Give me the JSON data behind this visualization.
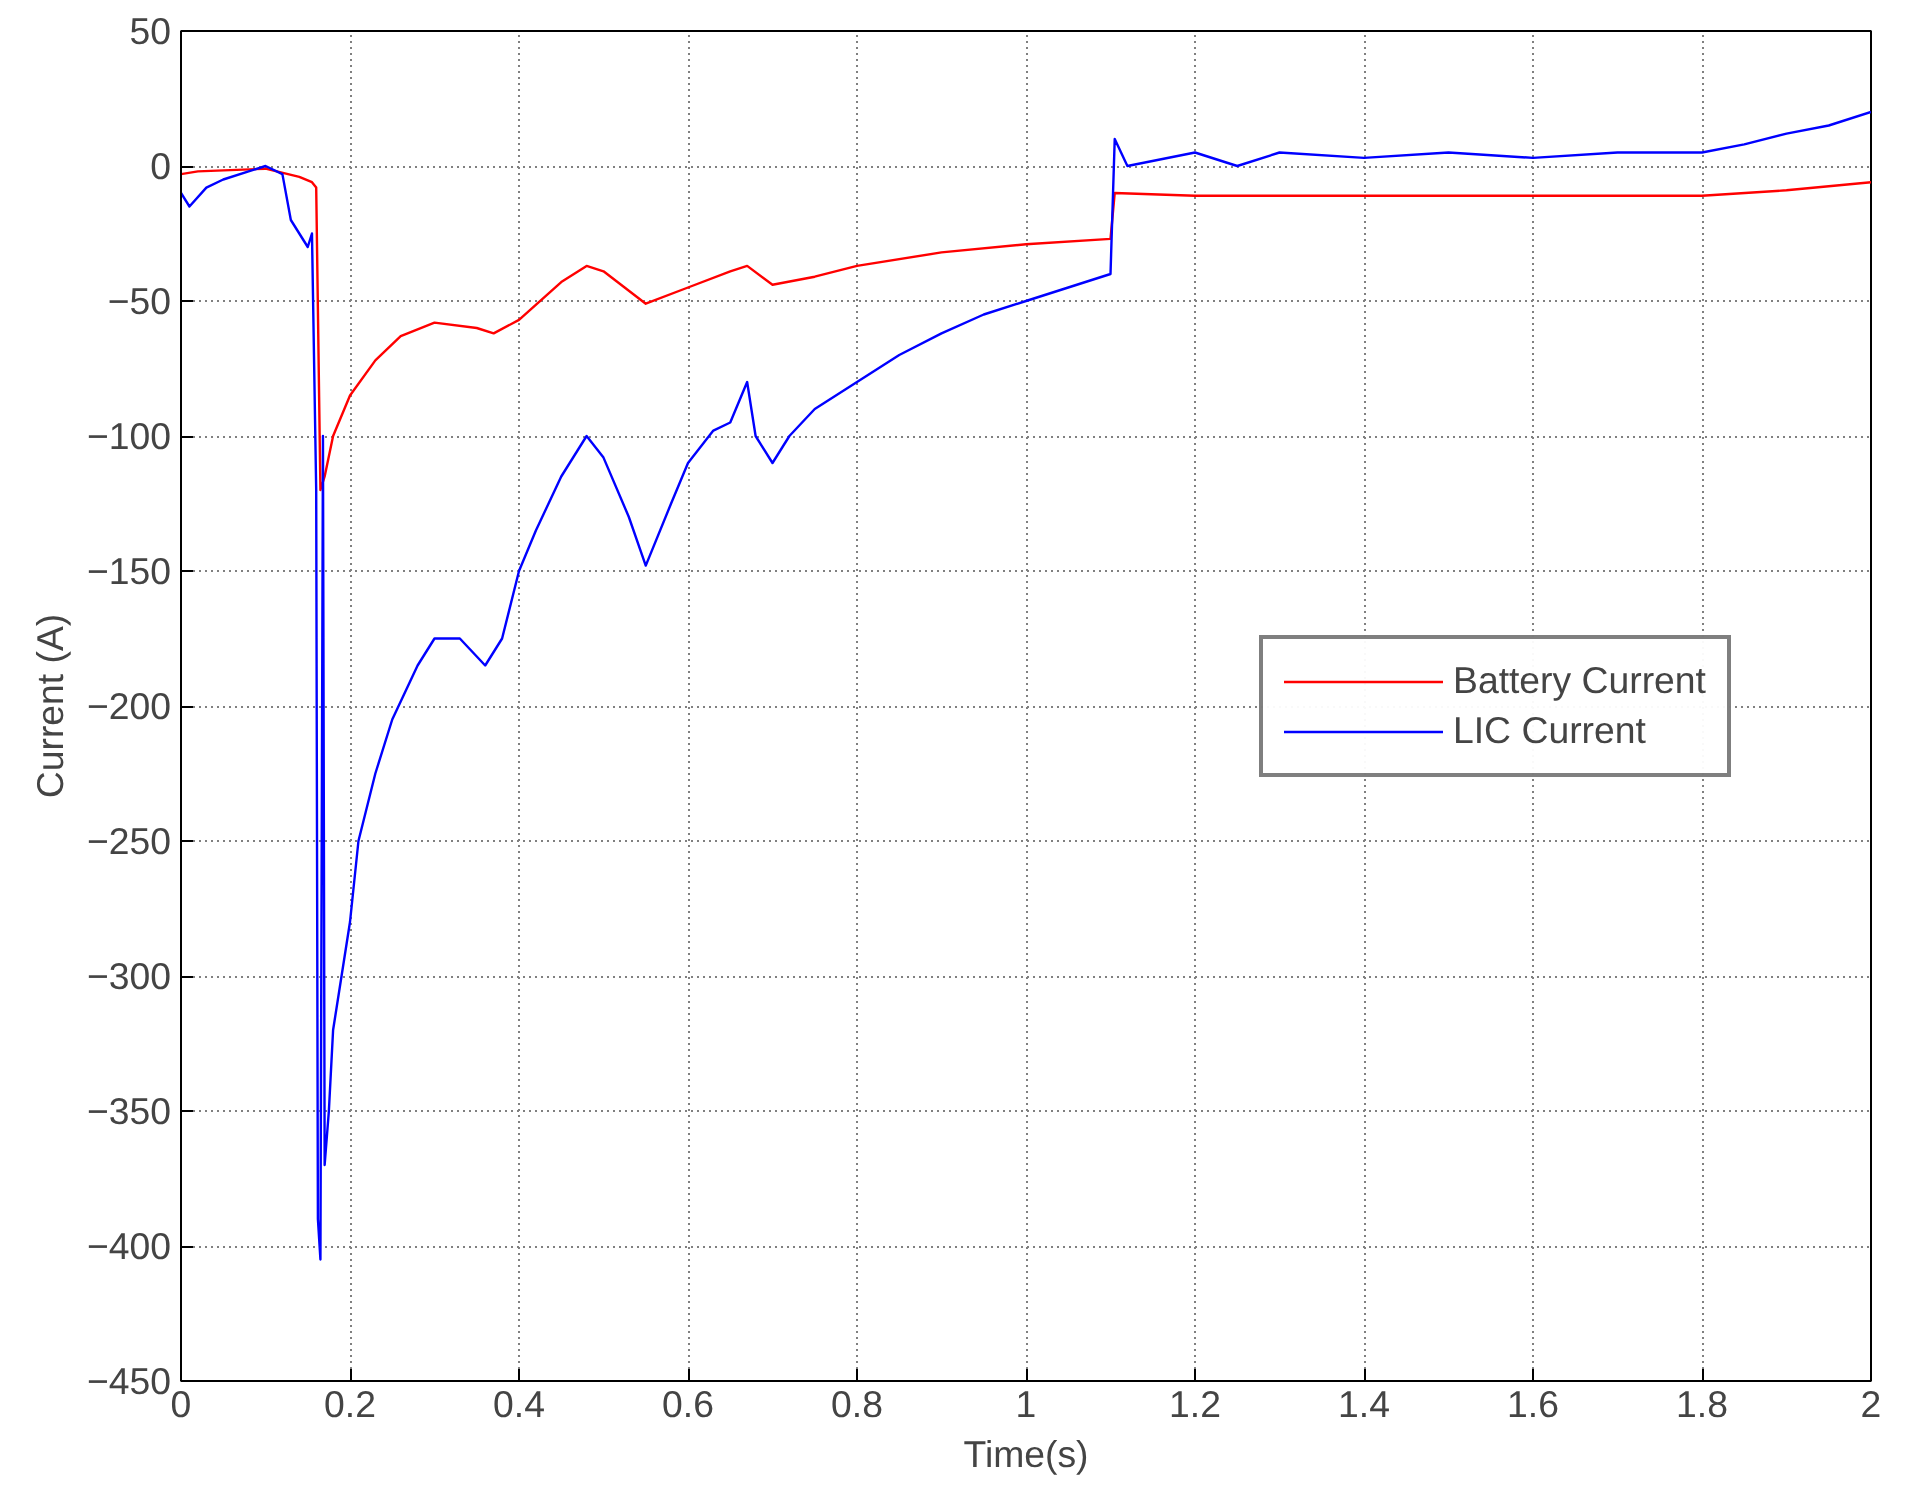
{
  "chart_data": {
    "type": "line",
    "xlabel": "Time(s)",
    "ylabel": "Current (A)",
    "xlim": [
      0,
      2
    ],
    "ylim": [
      -450,
      50
    ],
    "xticks": [
      0,
      0.2,
      0.4,
      0.6,
      0.8,
      1,
      1.2,
      1.4,
      1.6,
      1.8,
      2
    ],
    "yticks": [
      -450,
      -400,
      -350,
      -300,
      -250,
      -200,
      -150,
      -100,
      -50,
      0,
      50
    ],
    "grid": true,
    "legend": "right",
    "series": [
      {
        "name": "Battery Current",
        "color": "#ff0000",
        "x": [
          0,
          0.02,
          0.1,
          0.14,
          0.155,
          0.16,
          0.165,
          0.17,
          0.18,
          0.2,
          0.23,
          0.26,
          0.3,
          0.35,
          0.37,
          0.4,
          0.45,
          0.48,
          0.5,
          0.55,
          0.6,
          0.65,
          0.67,
          0.7,
          0.75,
          0.8,
          0.9,
          1.0,
          1.1,
          1.105,
          1.2,
          1.5,
          1.8,
          1.9,
          2.0
        ],
        "values": [
          -3,
          -2,
          -1,
          -4,
          -6,
          -8,
          -120,
          -115,
          -100,
          -85,
          -72,
          -63,
          -58,
          -60,
          -62,
          -57,
          -43,
          -37,
          -39,
          -51,
          -45,
          -39,
          -37,
          -44,
          -41,
          -37,
          -32,
          -29,
          -27,
          -10,
          -11,
          -11,
          -11,
          -9,
          -6
        ]
      },
      {
        "name": "LIC Current",
        "color": "#0000ff",
        "x": [
          0,
          0.01,
          0.03,
          0.05,
          0.08,
          0.1,
          0.12,
          0.13,
          0.15,
          0.155,
          0.16,
          0.162,
          0.165,
          0.168,
          0.17,
          0.175,
          0.18,
          0.19,
          0.2,
          0.21,
          0.23,
          0.25,
          0.28,
          0.3,
          0.33,
          0.36,
          0.38,
          0.4,
          0.42,
          0.45,
          0.48,
          0.5,
          0.53,
          0.55,
          0.58,
          0.6,
          0.63,
          0.65,
          0.67,
          0.68,
          0.7,
          0.72,
          0.75,
          0.8,
          0.85,
          0.9,
          0.95,
          1.0,
          1.05,
          1.1,
          1.105,
          1.12,
          1.2,
          1.25,
          1.3,
          1.4,
          1.5,
          1.6,
          1.7,
          1.8,
          1.85,
          1.9,
          1.95,
          2.0
        ],
        "values": [
          -10,
          -15,
          -8,
          -5,
          -2,
          0,
          -3,
          -20,
          -30,
          -25,
          -120,
          -390,
          -405,
          -100,
          -370,
          -350,
          -320,
          -300,
          -280,
          -250,
          -225,
          -205,
          -185,
          -175,
          -175,
          -185,
          -175,
          -150,
          -135,
          -115,
          -100,
          -108,
          -130,
          -148,
          -125,
          -110,
          -98,
          -95,
          -80,
          -100,
          -110,
          -100,
          -90,
          -80,
          -70,
          -62,
          -55,
          -50,
          -45,
          -40,
          10,
          0,
          5,
          0,
          5,
          3,
          5,
          3,
          5,
          5,
          8,
          12,
          15,
          20
        ]
      }
    ]
  }
}
